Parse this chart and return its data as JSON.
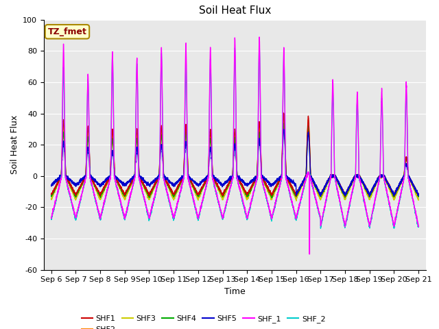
{
  "title": "Soil Heat Flux",
  "xlabel": "Time",
  "ylabel": "Soil Heat Flux",
  "ylim": [
    -60,
    100
  ],
  "xtick_labels": [
    "Sep 6",
    "Sep 7",
    "Sep 8",
    "Sep 9",
    "Sep 10",
    "Sep 11",
    "Sep 12",
    "Sep 13",
    "Sep 14",
    "Sep 15",
    "Sep 16",
    "Sep 17",
    "Sep 18",
    "Sep 19",
    "Sep 20",
    "Sep 21"
  ],
  "ytick_values": [
    -60,
    -40,
    -20,
    0,
    20,
    40,
    60,
    80,
    100
  ],
  "series_colors": {
    "SHF1": "#cc0000",
    "SHF2": "#ff8800",
    "SHF3": "#cccc00",
    "SHF4": "#00aa00",
    "SHF5": "#0000cc",
    "SHF_1": "#ff00ff",
    "SHF_2": "#00cccc"
  },
  "annotation_text": "TZ_fmet",
  "annotation_box_color": "#ffffcc",
  "annotation_box_edge": "#aa8800",
  "plot_bg": "#e8e8e8",
  "fig_bg": "#ffffff",
  "title_fontsize": 11,
  "axis_label_fontsize": 9,
  "tick_fontsize": 8
}
